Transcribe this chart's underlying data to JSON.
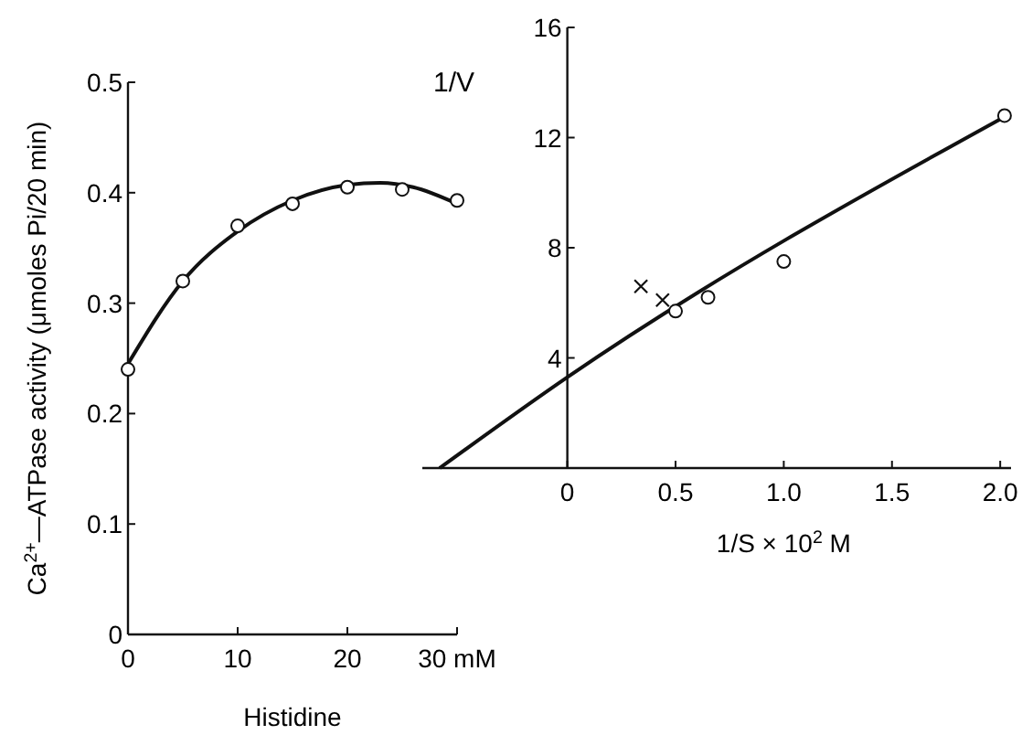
{
  "chart_data": [
    {
      "type": "scatter",
      "xlabel": "Histidine",
      "ylabel": "Ca$^{2+}$—ATPase activity (μmoles Pi/20 min)",
      "xlim": [
        0,
        30
      ],
      "ylim": [
        0,
        0.5
      ],
      "xticks": [
        0,
        10,
        20,
        {
          "value": 30,
          "label": "30 mM"
        }
      ],
      "yticks": [
        0,
        0.1,
        0.2,
        0.3,
        0.4,
        0.5
      ],
      "grid": false,
      "series": [
        {
          "type": "line",
          "color": "#111111",
          "marker": "none",
          "line_style": "solid",
          "x": [
            0,
            5,
            10,
            15,
            20,
            23,
            26,
            30
          ],
          "values": [
            0.245,
            0.32,
            0.365,
            0.393,
            0.407,
            0.409,
            0.405,
            0.39
          ]
        },
        {
          "color": "#111111",
          "marker": "circle",
          "x": [
            0,
            5,
            10,
            15,
            20,
            25,
            30
          ],
          "values": [
            0.24,
            0.32,
            0.37,
            0.39,
            0.405,
            0.403,
            0.393
          ]
        }
      ]
    },
    {
      "type": "scatter",
      "xlabel": "1/S × 10$^{2}$ M",
      "ylabel": "1/V",
      "xlim": [
        -0.67,
        2.05
      ],
      "ylim": [
        0,
        16
      ],
      "xticks": [
        0,
        0.5,
        {
          "value": 1,
          "label": "1.0"
        },
        1.5,
        {
          "value": 2,
          "label": "2.0"
        }
      ],
      "yticks": [
        4,
        8,
        12,
        16
      ],
      "grid": false,
      "series": [
        {
          "type": "line",
          "color": "#111111",
          "marker": "none",
          "line_style": "solid",
          "x": [
            -0.59,
            0,
            2.03
          ],
          "values": [
            0,
            3.3,
            12.8
          ]
        },
        {
          "color": "#111111",
          "marker": "circle",
          "x": [
            0.5,
            0.65,
            1.0,
            2.02
          ],
          "values": [
            5.7,
            6.2,
            7.5,
            12.8
          ]
        },
        {
          "color": "#111111",
          "marker": "cross",
          "x": [
            0.34,
            0.44
          ],
          "values": [
            6.6,
            6.1
          ]
        }
      ]
    }
  ]
}
